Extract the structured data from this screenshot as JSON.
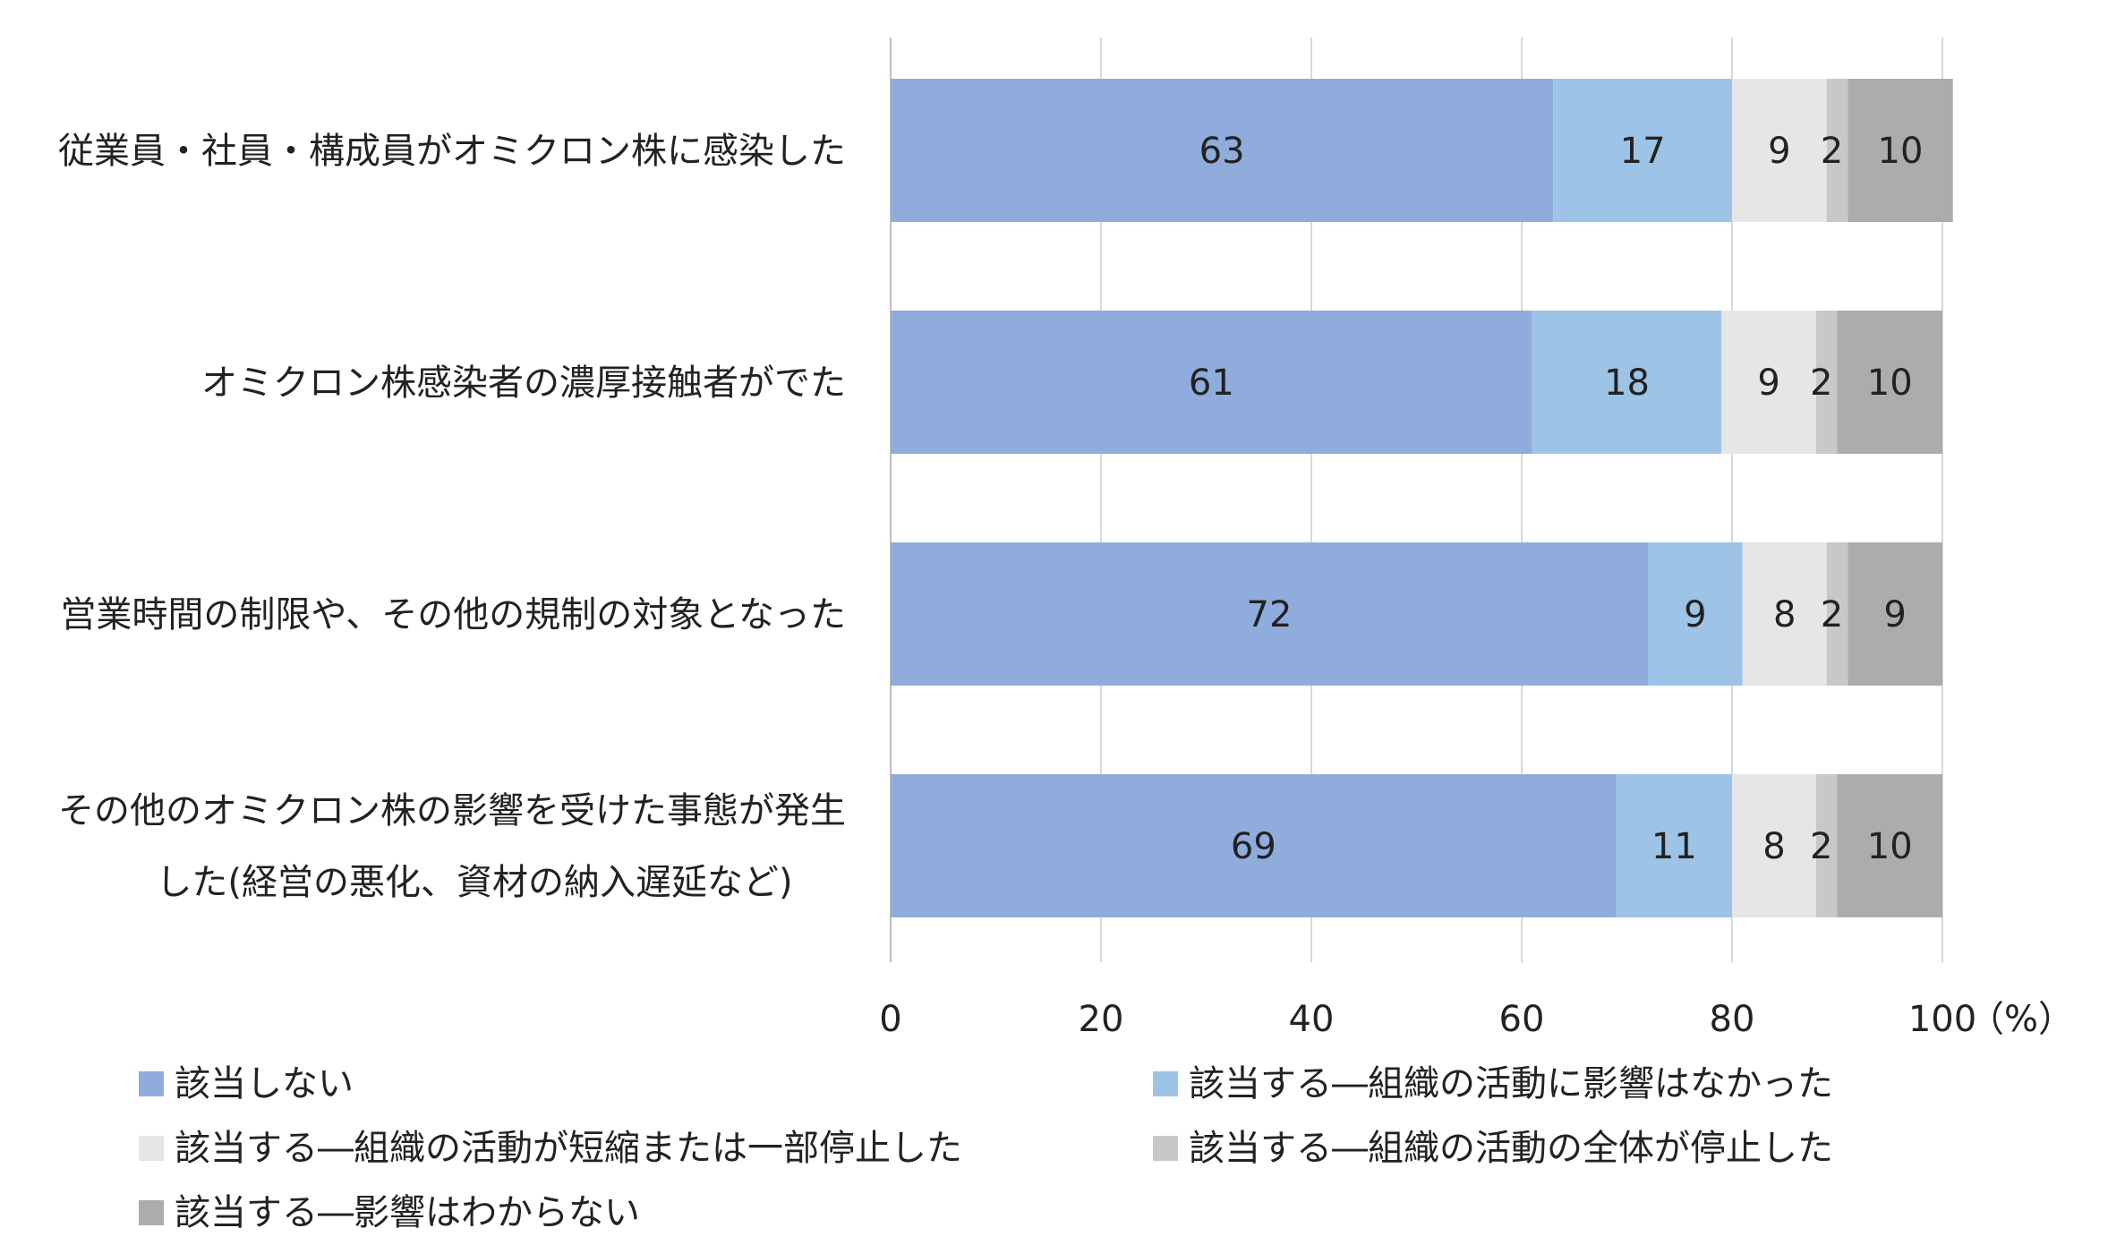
{
  "chart_data": {
    "type": "bar",
    "orientation": "horizontal",
    "stacked": true,
    "categories": [
      [
        "従業員・社員・構成員がオミクロン株に感染した"
      ],
      [
        "オミクロン株感染者の濃厚接触者がでた"
      ],
      [
        "営業時間の制限や、その他の規制の対象となった"
      ],
      [
        "その他のオミクロン株の影響を受けた事態が発生",
        "した(経営の悪化、資材の納入遅延など)"
      ]
    ],
    "series": [
      {
        "name": "該当しない",
        "color": "#8facdc",
        "values": [
          63,
          61,
          72,
          69
        ]
      },
      {
        "name": "該当する―組織の活動に影響はなかった",
        "color": "#9dc3e6",
        "values": [
          17,
          18,
          9,
          11
        ]
      },
      {
        "name": "該当する―組織の活動が短縮または一部停止した",
        "color": "#e6e6e6",
        "values": [
          9,
          9,
          8,
          8
        ]
      },
      {
        "name": "該当する―組織の活動の全体が停止した",
        "color": "#c8c8c8",
        "values": [
          2,
          2,
          2,
          2
        ]
      },
      {
        "name": "該当する―影響はわからない",
        "color": "#aeabab",
        "values": [
          10,
          10,
          9,
          10
        ]
      }
    ],
    "xlim": [
      0,
      100
    ],
    "xticks": [
      "0",
      "20",
      "40",
      "60",
      "80",
      "100"
    ],
    "xunit": "（%）",
    "grid": true,
    "legend_position": "bottom"
  }
}
